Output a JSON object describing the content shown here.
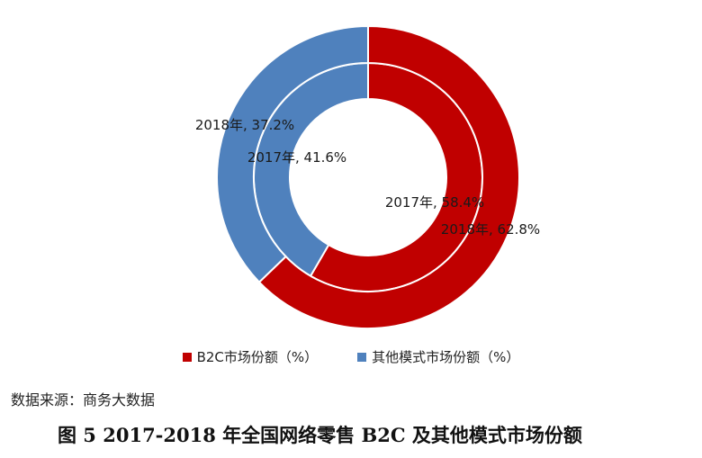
{
  "chart_data": {
    "type": "pie",
    "categories": [
      "B2C市场份额（%）",
      "其他模式市场份额（%）"
    ],
    "series": [
      {
        "name": "2017年",
        "values": [
          58.4,
          41.6
        ],
        "labels": [
          "2017年, 58.4%",
          "2017年, 41.6%"
        ]
      },
      {
        "name": "2018年",
        "values": [
          62.8,
          37.2
        ],
        "labels": [
          "2018年, 62.8%",
          "2018年, 37.2%"
        ]
      }
    ],
    "colors": [
      "#c00000",
      "#4f81bd"
    ],
    "legend": "bottom"
  },
  "legend": {
    "items": [
      {
        "label": "B2C市场份额（%）",
        "color": "#c00000"
      },
      {
        "label": "其他模式市场份额（%）",
        "color": "#4f81bd"
      }
    ]
  },
  "source": "数据来源：商务大数据",
  "caption": "图 5 2017-2018 年全国网络零售 B2C 及其他模式市场份额"
}
